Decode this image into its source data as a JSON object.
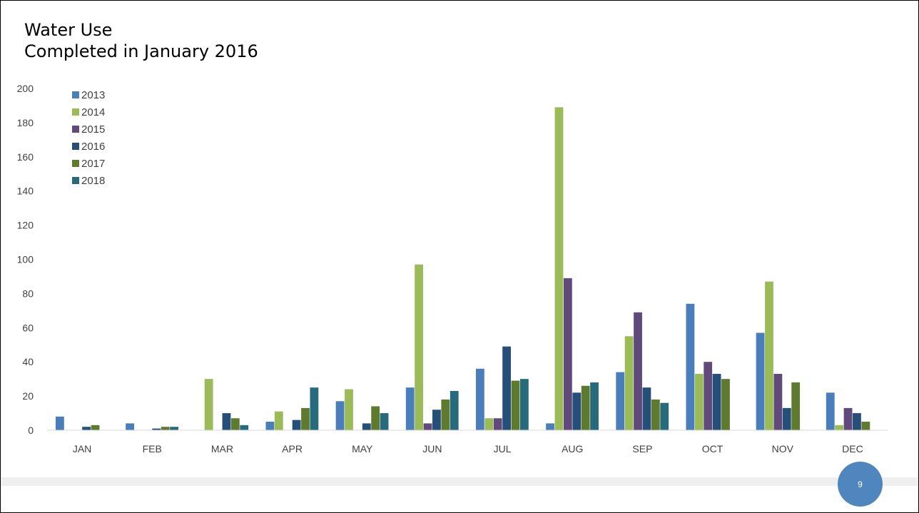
{
  "slide": {
    "title_line1": "Water Use",
    "title_line2": "Completed in January 2016",
    "page_number": "9"
  },
  "chart_data": {
    "type": "bar",
    "categories": [
      "JAN",
      "FEB",
      "MAR",
      "APR",
      "MAY",
      "JUN",
      "JUL",
      "AUG",
      "SEP",
      "OCT",
      "NOV",
      "DEC"
    ],
    "series": [
      {
        "name": "2013",
        "color": "#4a7ebb",
        "values": [
          8,
          4,
          0,
          5,
          17,
          25,
          36,
          4,
          34,
          74,
          57,
          22
        ]
      },
      {
        "name": "2014",
        "color": "#9bbb59",
        "values": [
          0,
          0,
          30,
          11,
          24,
          97,
          7,
          189,
          55,
          33,
          87,
          3
        ]
      },
      {
        "name": "2015",
        "color": "#604a7b",
        "values": [
          0,
          0,
          0,
          0,
          0,
          4,
          7,
          89,
          69,
          40,
          33,
          13
        ]
      },
      {
        "name": "2016",
        "color": "#254e78",
        "values": [
          2,
          1,
          10,
          6,
          4,
          12,
          49,
          22,
          25,
          33,
          13,
          10
        ]
      },
      {
        "name": "2017",
        "color": "#5e7a2f",
        "values": [
          3,
          2,
          7,
          13,
          14,
          18,
          29,
          26,
          18,
          30,
          28,
          5
        ]
      },
      {
        "name": "2018",
        "color": "#276a7c",
        "values": [
          0,
          2,
          3,
          25,
          10,
          23,
          30,
          28,
          16,
          0,
          0,
          0
        ]
      }
    ],
    "yticks": [
      "0",
      "20",
      "40",
      "60",
      "80",
      "100",
      "120",
      "140",
      "160",
      "180",
      "200"
    ],
    "ylim": [
      0,
      200
    ],
    "grid": false,
    "legend": "top-left"
  }
}
